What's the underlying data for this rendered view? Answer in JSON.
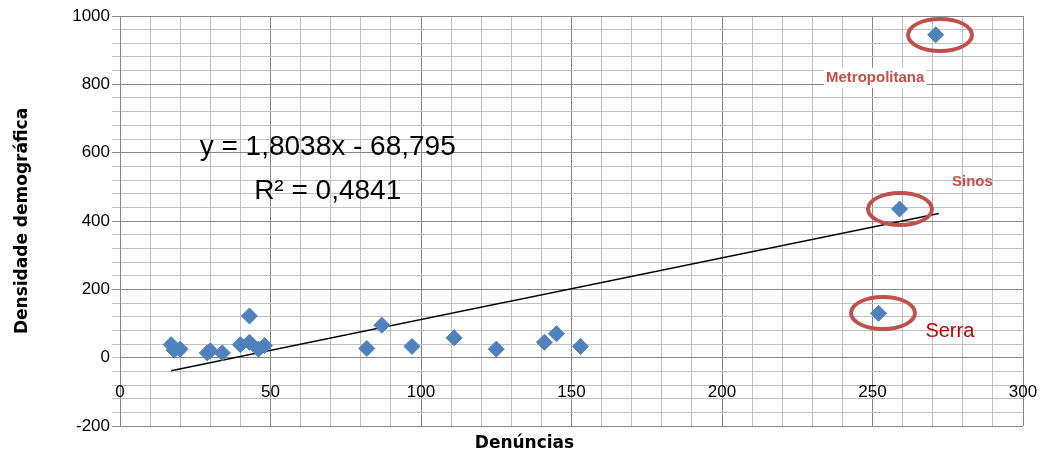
{
  "chart_data": {
    "type": "scatter",
    "xlabel": "Denúncias",
    "ylabel": "Densidade demográfica",
    "xlim": [
      0,
      300
    ],
    "ylim": [
      -200,
      1000
    ],
    "xticks": [
      0,
      {
        "value": 10,
        "label": null
      },
      {
        "value": 20,
        "label": null
      },
      {
        "value": 30,
        "label": null
      },
      {
        "value": 40,
        "label": null
      },
      50,
      {
        "value": 60,
        "label": null
      },
      {
        "value": 70,
        "label": null
      },
      {
        "value": 80,
        "label": null
      },
      {
        "value": 90,
        "label": null
      },
      100,
      {
        "value": 110,
        "label": null
      },
      {
        "value": 120,
        "label": null
      },
      {
        "value": 130,
        "label": null
      },
      {
        "value": 140,
        "label": null
      },
      150,
      {
        "value": 160,
        "label": null
      },
      {
        "value": 170,
        "label": null
      },
      {
        "value": 180,
        "label": null
      },
      {
        "value": 190,
        "label": null
      },
      200,
      {
        "value": 210,
        "label": null
      },
      {
        "value": 220,
        "label": null
      },
      {
        "value": 230,
        "label": null
      },
      {
        "value": 240,
        "label": null
      },
      250,
      {
        "value": 260,
        "label": null
      },
      {
        "value": 270,
        "label": null
      },
      {
        "value": 280,
        "label": null
      },
      {
        "value": 290,
        "label": null
      },
      300
    ],
    "yticks": [
      -200,
      {
        "value": -160,
        "label": null
      },
      {
        "value": -120,
        "label": null
      },
      {
        "value": -80,
        "label": null
      },
      {
        "value": -40,
        "label": null
      },
      0,
      {
        "value": 40,
        "label": null
      },
      {
        "value": 80,
        "label": null
      },
      {
        "value": 120,
        "label": null
      },
      {
        "value": 160,
        "label": null
      },
      200,
      {
        "value": 240,
        "label": null
      },
      {
        "value": 280,
        "label": null
      },
      {
        "value": 320,
        "label": null
      },
      {
        "value": 360,
        "label": null
      },
      400,
      {
        "value": 440,
        "label": null
      },
      {
        "value": 480,
        "label": null
      },
      {
        "value": 520,
        "label": null
      },
      {
        "value": 560,
        "label": null
      },
      600,
      {
        "value": 640,
        "label": null
      },
      {
        "value": 680,
        "label": null
      },
      {
        "value": 720,
        "label": null
      },
      {
        "value": 760,
        "label": null
      },
      800,
      {
        "value": 840,
        "label": null
      },
      {
        "value": 880,
        "label": null
      },
      {
        "value": 920,
        "label": null
      },
      {
        "value": 960,
        "label": null
      },
      1000
    ],
    "grid": true,
    "legend": false,
    "marker": "diamond",
    "series": [
      {
        "color": "#4f81bd",
        "x": [
          17,
          18,
          20,
          29,
          30,
          34,
          40,
          43,
          43,
          46,
          48,
          82,
          87,
          97,
          111,
          125,
          141,
          145,
          153,
          252,
          259,
          271
        ],
        "values": [
          38,
          22,
          25,
          14,
          20,
          14,
          38,
          122,
          45,
          25,
          35,
          27,
          95,
          33,
          58,
          25,
          45,
          70,
          33,
          130,
          435,
          945
        ]
      },
      {
        "type": "line",
        "marker": "none",
        "color": "#000000",
        "x": [
          17,
          272
        ],
        "values": [
          -38,
          422
        ]
      }
    ],
    "annotations": [
      "y = 1,8038x - 68,795",
      "R² = 0,4841",
      {
        "text": "Metropolitana",
        "x": 271,
        "y": 945
      },
      "Sinos",
      "Serra"
    ]
  }
}
